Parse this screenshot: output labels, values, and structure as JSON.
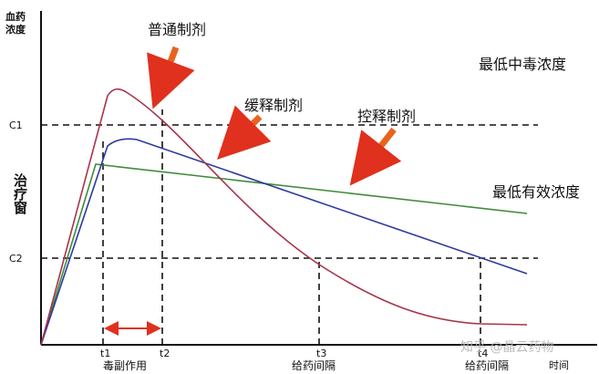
{
  "axes": {
    "y_label_1": "血药",
    "y_label_2": "浓度",
    "x_label": "时间",
    "window_label": "治疗窗",
    "c1": "C1",
    "c2": "C2",
    "t1": "t1",
    "t2": "t2",
    "t3": "t3",
    "t4": "t4"
  },
  "annotations": {
    "toxic_effect": "毒副作用",
    "interval_1": "给药间隔",
    "interval_2": "给药间隔",
    "max_conc": "最低中毒浓度",
    "min_conc": "最低有效浓度"
  },
  "curves": {
    "normal": "普通制剂",
    "sustained": "缓释制剂",
    "controlled": "控释制剂"
  },
  "watermark": "知乎 @晶云药物"
}
